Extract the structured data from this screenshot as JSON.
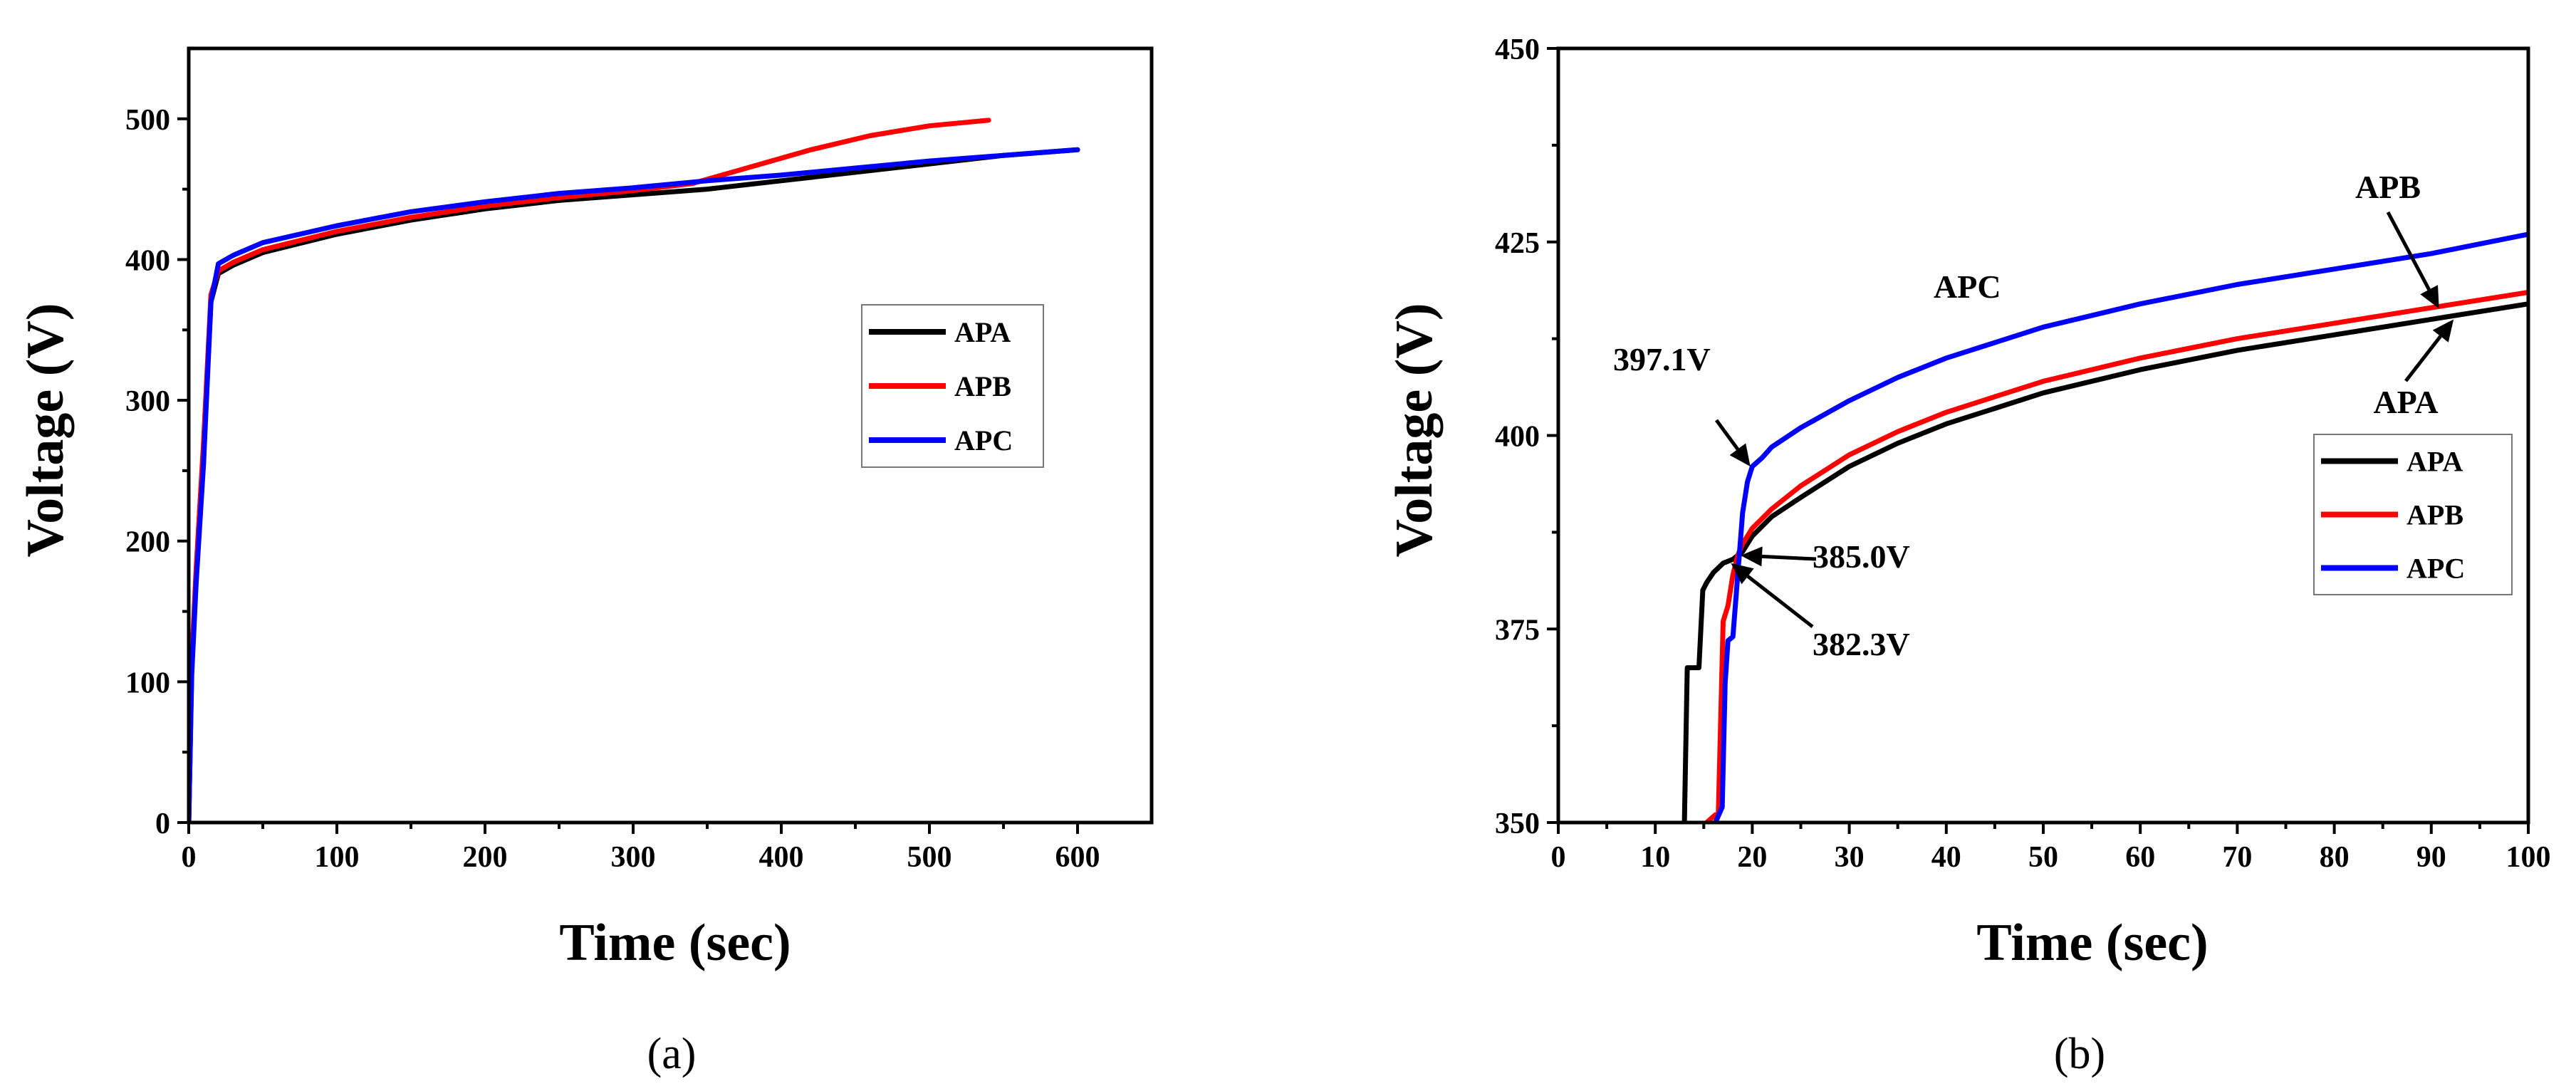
{
  "chart_data": [
    {
      "id": "a",
      "type": "line",
      "panel_label": "(a)",
      "title": "",
      "xlabel": "Time (sec)",
      "ylabel": "Voltage (V)",
      "xlim": [
        0,
        650
      ],
      "ylim": [
        0,
        550
      ],
      "xticks": [
        0,
        100,
        200,
        300,
        400,
        500,
        600
      ],
      "yticks": [
        0,
        100,
        200,
        300,
        400,
        500
      ],
      "legend_position": "right-middle",
      "series": [
        {
          "name": "APA",
          "color": "#000000",
          "x": [
            0,
            2,
            5,
            10,
            15,
            20,
            30,
            50,
            100,
            150,
            200,
            250,
            300,
            350,
            400,
            450,
            500,
            550,
            600
          ],
          "y": [
            0,
            110,
            175,
            265,
            370,
            390,
            396,
            405,
            418,
            428,
            436,
            442,
            446,
            450,
            456,
            462,
            468,
            474,
            478
          ]
        },
        {
          "name": "APB",
          "color": "#ff0000",
          "x": [
            0,
            2,
            5,
            10,
            15,
            20,
            30,
            50,
            100,
            150,
            200,
            250,
            300,
            340,
            380,
            420,
            460,
            500,
            540
          ],
          "y": [
            0,
            115,
            180,
            270,
            375,
            392,
            398,
            407,
            420,
            430,
            438,
            444,
            449,
            454,
            466,
            478,
            488,
            495,
            499
          ]
        },
        {
          "name": "APC",
          "color": "#0000ff",
          "x": [
            0,
            2,
            5,
            10,
            15,
            20,
            30,
            50,
            100,
            150,
            200,
            250,
            300,
            350,
            400,
            450,
            500,
            550,
            600
          ],
          "y": [
            0,
            105,
            170,
            255,
            370,
            397,
            403,
            412,
            424,
            434,
            441,
            447,
            451,
            456,
            460,
            465,
            470,
            474,
            478
          ]
        }
      ]
    },
    {
      "id": "b",
      "type": "line",
      "panel_label": "(b)",
      "title": "",
      "xlabel": "Time (sec)",
      "ylabel": "Voltage (V)",
      "xlim": [
        0,
        100
      ],
      "ylim": [
        350,
        450
      ],
      "xticks": [
        0,
        10,
        20,
        30,
        40,
        50,
        60,
        70,
        80,
        90,
        100
      ],
      "yticks": [
        350,
        375,
        400,
        425,
        450
      ],
      "legend_position": "right-middle",
      "series": [
        {
          "name": "APA",
          "color": "#000000",
          "x": [
            13,
            13.3,
            13.6,
            14.5,
            14.9,
            15.3,
            16,
            17,
            18,
            19,
            20,
            22,
            25,
            30,
            35,
            40,
            45,
            50,
            60,
            70,
            80,
            90,
            100
          ],
          "y": [
            350,
            370,
            370,
            370,
            380,
            381,
            382.3,
            383.5,
            384,
            385,
            387,
            389.5,
            392,
            396,
            399,
            401.5,
            403.5,
            405.5,
            408.5,
            411,
            413,
            415,
            417
          ]
        },
        {
          "name": "APB",
          "color": "#ff0000",
          "x": [
            15.3,
            16.2,
            16.5,
            17,
            17.5,
            18,
            18.5,
            19,
            20,
            22,
            25,
            30,
            35,
            40,
            45,
            50,
            60,
            70,
            80,
            90,
            100
          ],
          "y": [
            350,
            351,
            351,
            376,
            378,
            382,
            384.5,
            386,
            388,
            390.5,
            393.5,
            397.5,
            400.5,
            403,
            405,
            407,
            410,
            412.5,
            414.5,
            416.5,
            418.5
          ]
        },
        {
          "name": "APC",
          "color": "#0000ff",
          "x": [
            16.2,
            16.9,
            17.2,
            17.5,
            18,
            18.5,
            19,
            19.5,
            20,
            21,
            22,
            25,
            30,
            35,
            40,
            45,
            50,
            60,
            70,
            80,
            90,
            100
          ],
          "y": [
            350,
            352,
            368,
            373.5,
            374,
            382,
            390,
            394,
            396,
            397.1,
            398.5,
            401,
            404.5,
            407.5,
            410,
            412,
            414,
            417,
            419.5,
            421.5,
            423.5,
            426
          ]
        }
      ],
      "annotations": [
        {
          "text": "397.1V",
          "target": [
            19.8,
            396
          ]
        },
        {
          "text": "385.0V",
          "target": [
            18.8,
            384.5
          ]
        },
        {
          "text": "382.3V",
          "target": [
            17.8,
            383.5
          ]
        },
        {
          "text": "APC"
        },
        {
          "text": "APB",
          "target": [
            90.8,
            416.4
          ]
        },
        {
          "text": "APA",
          "target": [
            92.3,
            415
          ]
        }
      ]
    }
  ]
}
